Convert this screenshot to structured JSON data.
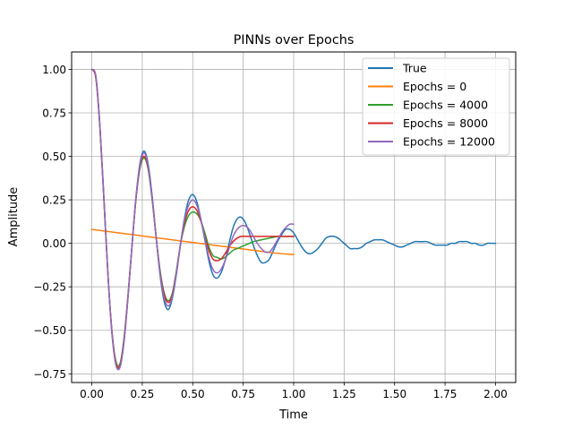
{
  "chart_data": {
    "type": "line",
    "title": "PINNs over Epochs",
    "xlabel": "Time",
    "ylabel": "Amplitude",
    "xlim": [
      -0.1,
      2.1
    ],
    "ylim": [
      -0.8,
      1.1
    ],
    "grid": true,
    "legend_position": "top-right",
    "xticks": [
      0.0,
      0.25,
      0.5,
      0.75,
      1.0,
      1.25,
      1.5,
      1.75,
      2.0
    ],
    "xtick_labels": [
      "0.00",
      "0.25",
      "0.50",
      "0.75",
      "1.00",
      "1.25",
      "1.50",
      "1.75",
      "2.00"
    ],
    "yticks": [
      -0.75,
      -0.5,
      -0.25,
      0.0,
      0.25,
      0.5,
      0.75,
      1.0
    ],
    "ytick_labels": [
      "−0.75",
      "−0.50",
      "−0.25",
      "0.00",
      "0.25",
      "0.50",
      "0.75",
      "1.00"
    ],
    "series": [
      {
        "name": "True",
        "color": "#1f77b4",
        "x": [
          0.0,
          0.02,
          0.04,
          0.06,
          0.08,
          0.1,
          0.12,
          0.14,
          0.16,
          0.18,
          0.2,
          0.22,
          0.24,
          0.26,
          0.28,
          0.3,
          0.32,
          0.34,
          0.36,
          0.38,
          0.4,
          0.42,
          0.44,
          0.46,
          0.48,
          0.5,
          0.52,
          0.54,
          0.56,
          0.58,
          0.6,
          0.62,
          0.64,
          0.66,
          0.68,
          0.7,
          0.72,
          0.74,
          0.76,
          0.78,
          0.8,
          0.82,
          0.84,
          0.86,
          0.88,
          0.9,
          0.92,
          0.94,
          0.96,
          0.98,
          1.0,
          1.02,
          1.04,
          1.06,
          1.08,
          1.1,
          1.12,
          1.14,
          1.16,
          1.18,
          1.2,
          1.22,
          1.24,
          1.26,
          1.28,
          1.3,
          1.32,
          1.34,
          1.36,
          1.38,
          1.4,
          1.42,
          1.44,
          1.46,
          1.48,
          1.5,
          1.52,
          1.54,
          1.56,
          1.58,
          1.6,
          1.62,
          1.64,
          1.66,
          1.68,
          1.7,
          1.72,
          1.74,
          1.76,
          1.78,
          1.8,
          1.82,
          1.84,
          1.86,
          1.88,
          1.9,
          1.92,
          1.94,
          1.96,
          1.98,
          2.0
        ],
        "y": [
          1.0,
          0.96,
          0.68,
          0.26,
          -0.18,
          -0.52,
          -0.7,
          -0.71,
          -0.56,
          -0.3,
          0.0,
          0.28,
          0.47,
          0.53,
          0.45,
          0.26,
          0.02,
          -0.2,
          -0.34,
          -0.38,
          -0.31,
          -0.17,
          0.0,
          0.15,
          0.25,
          0.28,
          0.24,
          0.14,
          0.02,
          -0.1,
          -0.18,
          -0.2,
          -0.17,
          -0.1,
          0.0,
          0.09,
          0.14,
          0.15,
          0.12,
          0.06,
          -0.01,
          -0.07,
          -0.11,
          -0.11,
          -0.09,
          -0.04,
          0.01,
          0.05,
          0.08,
          0.08,
          0.06,
          0.02,
          -0.02,
          -0.05,
          -0.06,
          -0.05,
          -0.03,
          0.0,
          0.03,
          0.04,
          0.04,
          0.03,
          0.01,
          -0.01,
          -0.03,
          -0.03,
          -0.03,
          -0.02,
          0.0,
          0.01,
          0.02,
          0.02,
          0.02,
          0.01,
          0.0,
          -0.01,
          -0.02,
          -0.02,
          -0.01,
          0.0,
          0.01,
          0.01,
          0.01,
          0.01,
          0.0,
          -0.01,
          -0.01,
          -0.01,
          -0.01,
          0.0,
          0.0,
          0.01,
          0.01,
          0.01,
          0.0,
          0.0,
          -0.01,
          -0.01,
          0.0,
          0.0,
          0.0
        ]
      },
      {
        "name": "Epochs = 0",
        "color": "#ff7f0e",
        "x": [
          0.0,
          0.1,
          0.2,
          0.3,
          0.4,
          0.5,
          0.6,
          0.7,
          0.8,
          0.9,
          1.0
        ],
        "y": [
          0.08,
          0.065,
          0.05,
          0.035,
          0.02,
          0.005,
          -0.01,
          -0.025,
          -0.04,
          -0.055,
          -0.065
        ]
      },
      {
        "name": "Epochs = 4000",
        "color": "#2ca02c",
        "x": [
          0.0,
          0.02,
          0.04,
          0.06,
          0.08,
          0.1,
          0.12,
          0.14,
          0.16,
          0.18,
          0.2,
          0.22,
          0.24,
          0.26,
          0.28,
          0.3,
          0.32,
          0.34,
          0.36,
          0.38,
          0.4,
          0.42,
          0.44,
          0.46,
          0.48,
          0.5,
          0.52,
          0.54,
          0.56,
          0.58,
          0.6,
          0.62,
          0.64,
          0.66,
          0.68,
          0.7,
          0.72,
          0.74,
          0.76,
          0.78,
          0.8,
          0.82,
          0.84,
          0.86,
          0.88,
          0.9,
          0.92,
          0.94,
          0.96,
          0.98,
          1.0
        ],
        "y": [
          1.0,
          0.95,
          0.67,
          0.25,
          -0.18,
          -0.51,
          -0.68,
          -0.69,
          -0.54,
          -0.29,
          0.0,
          0.27,
          0.44,
          0.49,
          0.42,
          0.24,
          0.02,
          -0.17,
          -0.29,
          -0.33,
          -0.28,
          -0.15,
          0.0,
          0.1,
          0.16,
          0.18,
          0.17,
          0.13,
          0.06,
          -0.02,
          -0.07,
          -0.08,
          -0.09,
          -0.08,
          -0.06,
          -0.04,
          -0.03,
          -0.02,
          -0.01,
          0.0,
          0.01,
          0.015,
          0.02,
          0.025,
          0.03,
          0.035,
          0.04,
          0.04,
          0.04,
          0.04,
          0.04
        ]
      },
      {
        "name": "Epochs = 8000",
        "color": "#d62728",
        "x": [
          0.0,
          0.02,
          0.04,
          0.06,
          0.08,
          0.1,
          0.12,
          0.14,
          0.16,
          0.18,
          0.2,
          0.22,
          0.24,
          0.26,
          0.28,
          0.3,
          0.32,
          0.34,
          0.36,
          0.38,
          0.4,
          0.42,
          0.44,
          0.46,
          0.48,
          0.5,
          0.52,
          0.54,
          0.56,
          0.58,
          0.6,
          0.62,
          0.64,
          0.66,
          0.68,
          0.7,
          0.72,
          0.74,
          0.76,
          0.78,
          0.8,
          0.82,
          0.84,
          0.86,
          0.88,
          0.9,
          0.92,
          0.94,
          0.96,
          0.98,
          1.0
        ],
        "y": [
          1.0,
          0.95,
          0.67,
          0.25,
          -0.18,
          -0.51,
          -0.69,
          -0.7,
          -0.55,
          -0.29,
          0.0,
          0.27,
          0.45,
          0.5,
          0.43,
          0.25,
          0.02,
          -0.18,
          -0.3,
          -0.34,
          -0.29,
          -0.16,
          0.0,
          0.12,
          0.19,
          0.21,
          0.19,
          0.13,
          0.04,
          -0.04,
          -0.09,
          -0.1,
          -0.09,
          -0.06,
          -0.02,
          0.01,
          0.03,
          0.04,
          0.04,
          0.04,
          0.04,
          0.04,
          0.04,
          0.04,
          0.04,
          0.04,
          0.04,
          0.04,
          0.04,
          0.04,
          0.04
        ]
      },
      {
        "name": "Epochs = 12000",
        "color": "#9467bd",
        "x": [
          0.0,
          0.02,
          0.04,
          0.06,
          0.08,
          0.1,
          0.12,
          0.14,
          0.16,
          0.18,
          0.2,
          0.22,
          0.24,
          0.26,
          0.28,
          0.3,
          0.32,
          0.34,
          0.36,
          0.38,
          0.4,
          0.42,
          0.44,
          0.46,
          0.48,
          0.5,
          0.52,
          0.54,
          0.56,
          0.58,
          0.6,
          0.62,
          0.64,
          0.66,
          0.68,
          0.7,
          0.72,
          0.74,
          0.76,
          0.78,
          0.8,
          0.82,
          0.84,
          0.86,
          0.88,
          0.9,
          0.92,
          0.94,
          0.96,
          0.98,
          1.0
        ],
        "y": [
          1.0,
          0.96,
          0.68,
          0.26,
          -0.18,
          -0.52,
          -0.7,
          -0.71,
          -0.56,
          -0.3,
          0.0,
          0.28,
          0.46,
          0.52,
          0.44,
          0.25,
          0.02,
          -0.19,
          -0.32,
          -0.36,
          -0.3,
          -0.16,
          0.0,
          0.14,
          0.22,
          0.25,
          0.22,
          0.14,
          0.03,
          -0.08,
          -0.15,
          -0.17,
          -0.15,
          -0.1,
          -0.03,
          0.04,
          0.08,
          0.1,
          0.1,
          0.08,
          0.04,
          0.0,
          -0.03,
          -0.05,
          -0.05,
          -0.02,
          0.02,
          0.06,
          0.09,
          0.11,
          0.11
        ]
      }
    ]
  }
}
